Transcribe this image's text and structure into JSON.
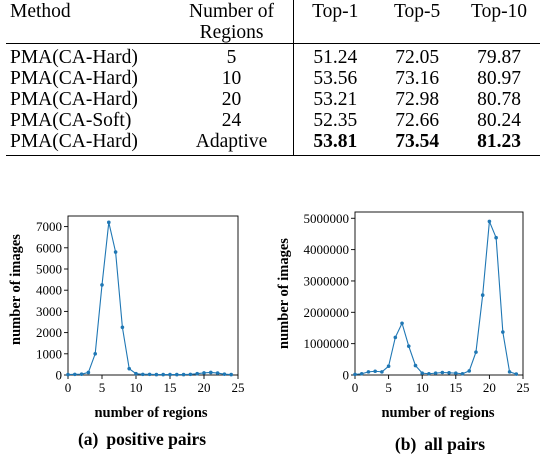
{
  "table": {
    "headers": {
      "method": "Method",
      "regions_line1": "Number of",
      "regions_line2": "Regions",
      "top1": "Top-1",
      "top5": "Top-5",
      "top10": "Top-10"
    },
    "rows": [
      {
        "method": "PMA(CA-Hard)",
        "regions": "5",
        "top1": "51.24",
        "top5": "72.05",
        "top10": "79.87"
      },
      {
        "method": "PMA(CA-Hard)",
        "regions": "10",
        "top1": "53.56",
        "top5": "73.16",
        "top10": "80.97"
      },
      {
        "method": "PMA(CA-Hard)",
        "regions": "20",
        "top1": "53.21",
        "top5": "72.98",
        "top10": "80.78"
      },
      {
        "method": "PMA(CA-Soft)",
        "regions": "24",
        "top1": "52.35",
        "top5": "72.66",
        "top10": "80.24"
      },
      {
        "method": "PMA(CA-Hard)",
        "regions": "Adaptive",
        "top1": "53.81",
        "top5": "73.54",
        "top10": "81.23"
      }
    ]
  },
  "chart_data": [
    {
      "type": "line",
      "caption_label": "(a)",
      "caption_text": "positive pairs",
      "xlabel": "number of regions",
      "ylabel": "number of images",
      "xlim": [
        0,
        25
      ],
      "ylim": [
        0,
        7500
      ],
      "xticks": [
        "0",
        "5",
        "10",
        "15",
        "20",
        "25"
      ],
      "yticks": [
        "0",
        "1000",
        "2000",
        "3000",
        "4000",
        "5000",
        "6000",
        "7000"
      ],
      "grid": false,
      "color": "#1f77b4",
      "series": [
        {
          "x": [
            0,
            1,
            2,
            3,
            4,
            5,
            6,
            7,
            8,
            9,
            10,
            11,
            12,
            13,
            14,
            15,
            16,
            17,
            18,
            19,
            20,
            21,
            22,
            23,
            24
          ],
          "values": [
            20,
            30,
            40,
            120,
            1000,
            4250,
            7200,
            5800,
            2250,
            300,
            60,
            30,
            30,
            20,
            20,
            20,
            20,
            20,
            30,
            60,
            100,
            120,
            90,
            40,
            20
          ]
        }
      ]
    },
    {
      "type": "line",
      "caption_label": "(b)",
      "caption_text": "all pairs",
      "xlabel": "number of regions",
      "ylabel": "number of images",
      "xlim": [
        0,
        25
      ],
      "ylim": [
        0,
        5200000
      ],
      "xticks": [
        "0",
        "5",
        "10",
        "15",
        "20",
        "25"
      ],
      "yticks": [
        "0",
        "1000000",
        "2000000",
        "3000000",
        "4000000",
        "5000000"
      ],
      "grid": false,
      "color": "#1f77b4",
      "series": [
        {
          "x": [
            0,
            1,
            2,
            3,
            4,
            5,
            6,
            7,
            8,
            9,
            10,
            11,
            12,
            13,
            14,
            15,
            16,
            17,
            18,
            19,
            20,
            21,
            22,
            23,
            24
          ],
          "values": [
            20000,
            40000,
            100000,
            120000,
            100000,
            280000,
            1200000,
            1650000,
            920000,
            300000,
            60000,
            40000,
            60000,
            80000,
            70000,
            60000,
            40000,
            130000,
            730000,
            2550000,
            4900000,
            4380000,
            1370000,
            100000,
            30000
          ]
        }
      ]
    }
  ]
}
